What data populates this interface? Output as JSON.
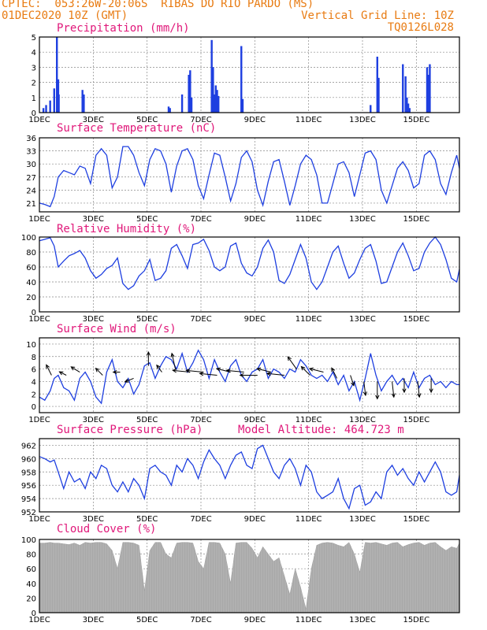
{
  "header": {
    "line1": "CPTEC:  053:26W-20:06S  RIBAS DO RIO PARDO (MS)",
    "line2_left": "01DEC2020 10Z (GMT)",
    "line2_right": "Vertical Grid Line: 10Z",
    "line3_right": "TQ0126L028"
  },
  "colors": {
    "line": "#1e3fe0",
    "bar": "#1e3fe0",
    "cloud": "#a8a8a8",
    "title": "#e0187a",
    "header": "#e87b12"
  },
  "x_axis": {
    "start_day": 1,
    "end_day": 16.6,
    "ticks": [
      "1DEC",
      "3DEC",
      "5DEC",
      "7DEC",
      "9DEC",
      "11DEC",
      "13DEC",
      "15DEC"
    ],
    "tick_days": [
      1,
      3,
      5,
      7,
      9,
      11,
      13,
      15
    ]
  },
  "chart_data": [
    {
      "type": "bar",
      "title": "Precipitation (mm/h)",
      "ylim": [
        0,
        5
      ],
      "yticks": [
        "0",
        "1",
        "2",
        "3",
        "4",
        "5"
      ],
      "x_days": [
        1.15,
        1.25,
        1.4,
        1.55,
        1.65,
        1.7,
        1.72,
        2.6,
        2.65,
        5.8,
        5.85,
        6.3,
        6.55,
        6.6,
        6.65,
        7.4,
        7.45,
        7.5,
        7.55,
        7.6,
        7.65,
        8.5,
        8.55,
        13.3,
        13.55,
        13.6,
        14.5,
        14.6,
        14.65,
        14.7,
        14.75,
        15.4,
        15.45,
        15.5
      ],
      "values": [
        0.3,
        0.5,
        0.8,
        1.6,
        5.0,
        2.2,
        1.2,
        1.5,
        1.2,
        0.4,
        0.3,
        1.2,
        2.5,
        2.8,
        1.0,
        4.8,
        3.0,
        1.2,
        1.8,
        1.5,
        1.1,
        4.4,
        0.9,
        0.5,
        3.7,
        2.3,
        3.2,
        2.4,
        1.0,
        0.6,
        0.3,
        3.0,
        2.5,
        3.2
      ]
    },
    {
      "type": "line",
      "title": "Surface Temperature (nC)",
      "ylim": [
        19,
        36
      ],
      "yticks": [
        "21",
        "24",
        "27",
        "30",
        "33",
        "36"
      ],
      "x": [
        1,
        1.2,
        1.4,
        1.55,
        1.7,
        1.9,
        2.1,
        2.3,
        2.5,
        2.7,
        2.9,
        3.1,
        3.3,
        3.5,
        3.7,
        3.9,
        4.1,
        4.3,
        4.5,
        4.7,
        4.9,
        5.1,
        5.3,
        5.5,
        5.7,
        5.9,
        6.1,
        6.3,
        6.5,
        6.7,
        6.9,
        7.1,
        7.3,
        7.5,
        7.7,
        7.9,
        8.1,
        8.3,
        8.5,
        8.7,
        8.9,
        9.1,
        9.3,
        9.5,
        9.7,
        9.9,
        10.1,
        10.3,
        10.5,
        10.7,
        10.9,
        11.1,
        11.3,
        11.5,
        11.7,
        11.9,
        12.1,
        12.3,
        12.5,
        12.7,
        12.9,
        13.1,
        13.3,
        13.5,
        13.7,
        13.9,
        14.1,
        14.3,
        14.5,
        14.7,
        14.9,
        15.1,
        15.3,
        15.5,
        15.7,
        15.9,
        16.1,
        16.3,
        16.5,
        16.6
      ],
      "values": [
        21,
        20.7,
        20.2,
        22.5,
        27,
        28.5,
        28,
        27.5,
        29.5,
        29,
        25.5,
        32,
        33.5,
        32,
        24.5,
        27,
        34,
        34,
        32,
        28,
        25,
        31,
        33.5,
        33,
        30,
        23.5,
        29.5,
        33,
        33.5,
        31,
        25,
        22,
        27.5,
        32.5,
        32,
        27,
        21.5,
        25.5,
        31.5,
        33,
        30.5,
        24,
        20.5,
        26,
        30.5,
        31,
        26,
        20.5,
        25,
        30,
        32,
        31,
        27.5,
        21,
        21,
        25.5,
        30,
        30.5,
        28,
        22.5,
        27.5,
        32.5,
        33,
        31,
        24,
        21,
        25,
        29,
        30.5,
        28.5,
        24.5,
        25.5,
        32,
        33,
        31,
        25.5,
        23,
        28,
        32,
        29
      ]
    },
    {
      "type": "line",
      "title": "Relative Humidity (%)",
      "ylim": [
        0,
        100
      ],
      "yticks": [
        "0",
        "20",
        "40",
        "60",
        "80",
        "100"
      ],
      "x": [
        1,
        1.2,
        1.4,
        1.55,
        1.7,
        1.9,
        2.1,
        2.3,
        2.5,
        2.7,
        2.9,
        3.1,
        3.3,
        3.5,
        3.7,
        3.9,
        4.1,
        4.3,
        4.5,
        4.7,
        4.9,
        5.1,
        5.3,
        5.5,
        5.7,
        5.9,
        6.1,
        6.3,
        6.5,
        6.7,
        6.9,
        7.1,
        7.3,
        7.5,
        7.7,
        7.9,
        8.1,
        8.3,
        8.5,
        8.7,
        8.9,
        9.1,
        9.3,
        9.5,
        9.7,
        9.9,
        10.1,
        10.3,
        10.5,
        10.7,
        10.9,
        11.1,
        11.3,
        11.5,
        11.7,
        11.9,
        12.1,
        12.3,
        12.5,
        12.7,
        12.9,
        13.1,
        13.3,
        13.5,
        13.7,
        13.9,
        14.1,
        14.3,
        14.5,
        14.7,
        14.9,
        15.1,
        15.3,
        15.5,
        15.7,
        15.9,
        16.1,
        16.3,
        16.5,
        16.6
      ],
      "values": [
        95,
        97,
        99,
        88,
        60,
        68,
        75,
        78,
        82,
        72,
        55,
        45,
        50,
        58,
        62,
        72,
        38,
        30,
        35,
        48,
        55,
        70,
        42,
        45,
        55,
        85,
        90,
        75,
        58,
        90,
        92,
        97,
        82,
        60,
        55,
        60,
        88,
        92,
        65,
        52,
        48,
        60,
        85,
        96,
        80,
        42,
        38,
        50,
        70,
        90,
        72,
        40,
        30,
        40,
        60,
        80,
        88,
        65,
        45,
        52,
        70,
        85,
        90,
        68,
        38,
        40,
        60,
        80,
        92,
        75,
        55,
        58,
        80,
        92,
        100,
        90,
        70,
        45,
        40,
        57
      ]
    },
    {
      "type": "line",
      "title": "Surface Wind (m/s)",
      "ylim": [
        -1,
        11
      ],
      "yticks": [
        "0",
        "2",
        "4",
        "6",
        "8",
        "10"
      ],
      "x": [
        1,
        1.2,
        1.4,
        1.55,
        1.7,
        1.9,
        2.1,
        2.3,
        2.5,
        2.7,
        2.9,
        3.1,
        3.3,
        3.5,
        3.7,
        3.9,
        4.1,
        4.3,
        4.5,
        4.7,
        4.9,
        5.1,
        5.3,
        5.5,
        5.7,
        5.9,
        6.1,
        6.3,
        6.5,
        6.7,
        6.9,
        7.1,
        7.3,
        7.5,
        7.7,
        7.9,
        8.1,
        8.3,
        8.5,
        8.7,
        8.9,
        9.1,
        9.3,
        9.5,
        9.7,
        9.9,
        10.1,
        10.3,
        10.5,
        10.7,
        10.9,
        11.1,
        11.3,
        11.5,
        11.7,
        11.9,
        12.1,
        12.3,
        12.5,
        12.7,
        12.9,
        13.1,
        13.3,
        13.5,
        13.7,
        13.9,
        14.1,
        14.3,
        14.5,
        14.7,
        14.9,
        15.1,
        15.3,
        15.5,
        15.7,
        15.9,
        16.1,
        16.3,
        16.5,
        16.6
      ],
      "values": [
        1.5,
        1.0,
        2.5,
        4.5,
        5.0,
        3.0,
        2.5,
        1.0,
        4.5,
        5.5,
        4.0,
        1.5,
        0.5,
        5.5,
        7.5,
        4.0,
        3.0,
        4.5,
        2.0,
        3.5,
        6.5,
        7.0,
        4.5,
        6.5,
        8.0,
        7.5,
        6.0,
        8.5,
        5.5,
        7.0,
        9.0,
        7.5,
        4.5,
        7.5,
        5.5,
        4.0,
        6.5,
        7.5,
        5.0,
        4.0,
        5.5,
        6.0,
        7.5,
        4.5,
        6.0,
        5.5,
        4.5,
        6.0,
        5.5,
        7.5,
        6.5,
        5.0,
        4.5,
        5.0,
        4.0,
        5.5,
        3.5,
        5.0,
        2.5,
        4.0,
        1.0,
        4.5,
        8.5,
        5.0,
        2.5,
        4.0,
        5.0,
        3.5,
        4.5,
        3.0,
        5.5,
        3.0,
        4.5,
        5.0,
        3.5,
        4.0,
        3.0,
        4.0,
        3.5,
        3.5
      ],
      "arrow_days": [
        1.45,
        2.0,
        2.5,
        3.35,
        4.0,
        4.5,
        5.05,
        5.55,
        6.05,
        6.6,
        7.1,
        7.6,
        8.1,
        8.6,
        9.1,
        9.6,
        10.1,
        10.55,
        11.05,
        11.55,
        12.05,
        12.55,
        13.05,
        13.55,
        14.1,
        14.55,
        15.05,
        15.55
      ],
      "arrow_speeds": [
        5,
        5,
        5.5,
        5,
        5.5,
        4.5,
        6.5,
        5.5,
        6,
        5.5,
        5.5,
        5,
        5.5,
        5.5,
        5,
        5.5,
        5,
        6,
        5,
        5.5,
        4.5,
        5,
        4,
        4,
        4,
        4.5,
        4,
        4.5
      ],
      "arrow_u": [
        -0.3,
        -0.4,
        -0.5,
        -0.4,
        -0.4,
        -0.5,
        0.0,
        -0.3,
        -0.2,
        -1.0,
        -1.0,
        -1.0,
        -0.8,
        -1.0,
        -1.0,
        -0.8,
        -1.0,
        -0.5,
        -0.5,
        -0.8,
        -0.3,
        0.2,
        0.1,
        0.0,
        0.1,
        0.0,
        0.1,
        0.0
      ],
      "arrow_v": [
        0.6,
        0.2,
        0.3,
        0.4,
        0.0,
        -0.2,
        0.8,
        0.4,
        0.9,
        0.1,
        0.1,
        0.1,
        0.2,
        0.1,
        0.0,
        0.2,
        0.1,
        0.7,
        0.5,
        0.2,
        0.6,
        -0.6,
        -0.8,
        -1.0,
        -0.9,
        -0.8,
        -0.9,
        -0.8
      ]
    },
    {
      "type": "line",
      "title": "Surface Pressure (hPa)",
      "subtitle": "Model Altitude: 464.723 m",
      "ylim": [
        952,
        963
      ],
      "yticks": [
        "952",
        "954",
        "956",
        "958",
        "960",
        "962"
      ],
      "x": [
        1,
        1.2,
        1.4,
        1.55,
        1.7,
        1.9,
        2.1,
        2.3,
        2.5,
        2.7,
        2.9,
        3.1,
        3.3,
        3.5,
        3.7,
        3.9,
        4.1,
        4.3,
        4.5,
        4.7,
        4.9,
        5.1,
        5.3,
        5.5,
        5.7,
        5.9,
        6.1,
        6.3,
        6.5,
        6.7,
        6.9,
        7.1,
        7.3,
        7.5,
        7.7,
        7.9,
        8.1,
        8.3,
        8.5,
        8.7,
        8.9,
        9.1,
        9.3,
        9.5,
        9.7,
        9.9,
        10.1,
        10.3,
        10.5,
        10.7,
        10.9,
        11.1,
        11.3,
        11.5,
        11.7,
        11.9,
        12.1,
        12.3,
        12.5,
        12.7,
        12.9,
        13.1,
        13.3,
        13.5,
        13.7,
        13.9,
        14.1,
        14.3,
        14.5,
        14.7,
        14.9,
        15.1,
        15.3,
        15.5,
        15.7,
        15.9,
        16.1,
        16.3,
        16.5,
        16.6
      ],
      "values": [
        960.3,
        960,
        959.5,
        959.8,
        958,
        955.5,
        958,
        956.5,
        957,
        955.5,
        958,
        957,
        959,
        958.5,
        956,
        955,
        956.5,
        955,
        957,
        956,
        954,
        958.5,
        959,
        958,
        957.5,
        956,
        959,
        958,
        960,
        959,
        957,
        959.5,
        961.3,
        960,
        959,
        957,
        959,
        960.5,
        961,
        959,
        958.5,
        961.5,
        962,
        960,
        958,
        957,
        959,
        960,
        958.5,
        956,
        959,
        958,
        955,
        954,
        954.5,
        955,
        957,
        954,
        952.5,
        955.5,
        956,
        953,
        953.5,
        955,
        954,
        958,
        959,
        957.5,
        958.5,
        957,
        956,
        958,
        956.5,
        958,
        959.5,
        958,
        955,
        954.5,
        955,
        957.5
      ]
    },
    {
      "type": "area",
      "title": "Cloud Cover (%)",
      "ylim": [
        0,
        100
      ],
      "yticks": [
        "0",
        "20",
        "40",
        "60",
        "80",
        "100"
      ],
      "x": [
        1,
        1.2,
        1.4,
        1.55,
        1.7,
        1.9,
        2.1,
        2.3,
        2.5,
        2.7,
        2.9,
        3.1,
        3.3,
        3.5,
        3.7,
        3.9,
        4.1,
        4.3,
        4.5,
        4.7,
        4.9,
        5.1,
        5.3,
        5.5,
        5.7,
        5.9,
        6.1,
        6.3,
        6.5,
        6.7,
        6.9,
        7.1,
        7.3,
        7.5,
        7.7,
        7.9,
        8.1,
        8.3,
        8.5,
        8.7,
        8.9,
        9.1,
        9.3,
        9.5,
        9.7,
        9.9,
        10.1,
        10.3,
        10.5,
        10.7,
        10.9,
        11.1,
        11.3,
        11.5,
        11.7,
        11.9,
        12.1,
        12.3,
        12.5,
        12.7,
        12.9,
        13.1,
        13.3,
        13.5,
        13.7,
        13.9,
        14.1,
        14.3,
        14.5,
        14.7,
        14.9,
        15.1,
        15.3,
        15.5,
        15.7,
        15.9,
        16.1,
        16.3,
        16.5,
        16.6
      ],
      "values": [
        95,
        95,
        96,
        95,
        95,
        94,
        93,
        95,
        92,
        96,
        95,
        96,
        96,
        94,
        85,
        60,
        96,
        96,
        95,
        92,
        30,
        85,
        96,
        96,
        80,
        75,
        95,
        96,
        96,
        95,
        70,
        60,
        96,
        96,
        95,
        80,
        40,
        95,
        96,
        96,
        88,
        75,
        90,
        80,
        70,
        75,
        50,
        25,
        60,
        35,
        5,
        60,
        92,
        95,
        96,
        95,
        92,
        90,
        96,
        80,
        55,
        96,
        95,
        96,
        94,
        92,
        95,
        96,
        90,
        93,
        95,
        96,
        92,
        95,
        96,
        90,
        85,
        90,
        88,
        95
      ]
    }
  ]
}
